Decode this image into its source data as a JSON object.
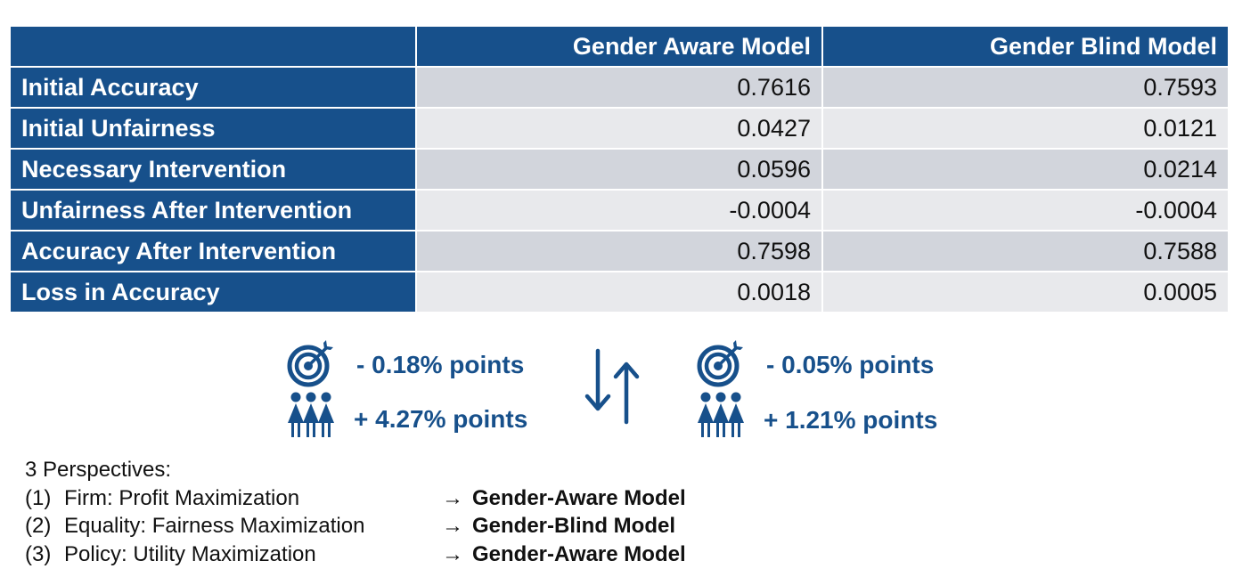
{
  "table": {
    "columns": [
      "Gender Aware Model",
      "Gender Blind Model"
    ],
    "rows": [
      {
        "label": "Initial Accuracy",
        "values": [
          "0.7616",
          "0.7593"
        ]
      },
      {
        "label": "Initial Unfairness",
        "values": [
          "0.0427",
          "0.0121"
        ]
      },
      {
        "label": "Necessary Intervention",
        "values": [
          "0.0596",
          "0.0214"
        ]
      },
      {
        "label": "Unfairness After Intervention",
        "values": [
          "-0.0004",
          "-0.0004"
        ]
      },
      {
        "label": "Accuracy After Intervention",
        "values": [
          "0.7598",
          "0.7588"
        ]
      },
      {
        "label": "Loss in Accuracy",
        "values": [
          "0.0018",
          "0.0005"
        ]
      }
    ]
  },
  "comparison": {
    "aware": {
      "accuracy_change": "- 0.18% points",
      "fairness_change": "+ 4.27% points"
    },
    "blind": {
      "accuracy_change": "- 0.05% points",
      "fairness_change": "+ 1.21% points"
    }
  },
  "icons": {
    "accuracy": "target-icon",
    "fairness": "people-group-icon",
    "tradeoff": "swap-arrows-icon",
    "color": "#17508b"
  },
  "perspectives": {
    "title": "3 Perspectives:",
    "arrow": "→",
    "items": [
      {
        "num": "(1)",
        "label": "Firm: Profit Maximization",
        "result": "Gender-Aware Model"
      },
      {
        "num": "(2)",
        "label": "Equality: Fairness Maximization",
        "result": "Gender-Blind Model"
      },
      {
        "num": "(3)",
        "label": "Policy: Utility Maximization",
        "result": "Gender-Aware Model"
      }
    ]
  }
}
